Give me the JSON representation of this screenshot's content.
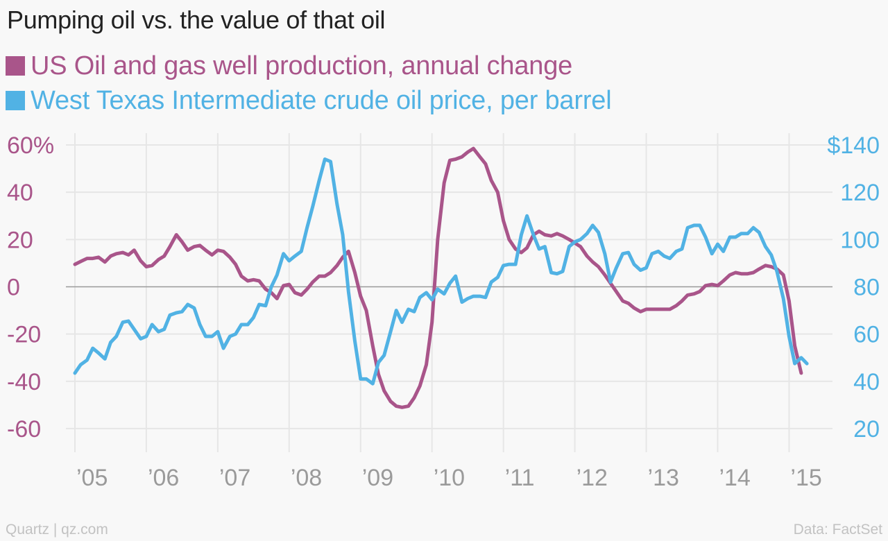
{
  "title": "Pumping oil vs. the value of that oil",
  "legend": [
    {
      "label": "US Oil and gas well production, annual change",
      "color": "#a9558a"
    },
    {
      "label": "West Texas Intermediate crude oil price, per barrel",
      "color": "#51b2e4"
    }
  ],
  "footer": {
    "source_left": "Quartz | qz.com",
    "source_right": "Data: FactSet"
  },
  "chart_data": {
    "type": "line",
    "title": "Pumping oil vs. the value of that oil",
    "grid": true,
    "x_ticks": [
      {
        "t": 2005,
        "label": "’05"
      },
      {
        "t": 2006,
        "label": "’06"
      },
      {
        "t": 2007,
        "label": "’07"
      },
      {
        "t": 2008,
        "label": "’08"
      },
      {
        "t": 2009,
        "label": "’09"
      },
      {
        "t": 2010,
        "label": "’10"
      },
      {
        "t": 2011,
        "label": "’11"
      },
      {
        "t": 2012,
        "label": "’12"
      },
      {
        "t": 2013,
        "label": "’13"
      },
      {
        "t": 2014,
        "label": "’14"
      },
      {
        "t": 2015,
        "label": "’15"
      }
    ],
    "y_left": {
      "ylim": [
        -70,
        65
      ],
      "ticks": [
        {
          "v": 60,
          "label": "60%"
        },
        {
          "v": 40,
          "label": "40"
        },
        {
          "v": 20,
          "label": "20"
        },
        {
          "v": 0,
          "label": "0"
        },
        {
          "v": -20,
          "label": "-20"
        },
        {
          "v": -40,
          "label": "-40"
        },
        {
          "v": -60,
          "label": "-60"
        }
      ],
      "color": "#a9558a"
    },
    "y_right": {
      "ylim": [
        10,
        145
      ],
      "ticks": [
        {
          "v": 140,
          "label": "$140"
        },
        {
          "v": 120,
          "label": "120"
        },
        {
          "v": 100,
          "label": "100"
        },
        {
          "v": 80,
          "label": "80"
        },
        {
          "v": 60,
          "label": "60"
        },
        {
          "v": 40,
          "label": "40"
        },
        {
          "v": 20,
          "label": "20"
        }
      ],
      "color": "#51b2e4"
    },
    "series": [
      {
        "name": "US Oil and gas well production, annual change",
        "axis": "left",
        "color": "#a9558a",
        "points": [
          [
            2005.0,
            9.5
          ],
          [
            2005.1,
            11
          ],
          [
            2005.17,
            12
          ],
          [
            2005.25,
            12
          ],
          [
            2005.33,
            12.5
          ],
          [
            2005.42,
            10.5
          ],
          [
            2005.5,
            13
          ],
          [
            2005.58,
            14
          ],
          [
            2005.67,
            14.5
          ],
          [
            2005.75,
            13.5
          ],
          [
            2005.83,
            15.5
          ],
          [
            2005.92,
            11
          ],
          [
            2006.0,
            8.5
          ],
          [
            2006.08,
            9
          ],
          [
            2006.17,
            11.5
          ],
          [
            2006.25,
            13
          ],
          [
            2006.33,
            17
          ],
          [
            2006.42,
            22
          ],
          [
            2006.5,
            19
          ],
          [
            2006.58,
            15.5
          ],
          [
            2006.67,
            17
          ],
          [
            2006.75,
            17.5
          ],
          [
            2006.83,
            15.5
          ],
          [
            2006.92,
            13.5
          ],
          [
            2007.0,
            15.5
          ],
          [
            2007.08,
            15
          ],
          [
            2007.17,
            12.5
          ],
          [
            2007.25,
            9.5
          ],
          [
            2007.33,
            4.5
          ],
          [
            2007.42,
            2.5
          ],
          [
            2007.5,
            3
          ],
          [
            2007.58,
            2.5
          ],
          [
            2007.67,
            -1
          ],
          [
            2007.75,
            -2.5
          ],
          [
            2007.83,
            -5
          ],
          [
            2007.92,
            0.5
          ],
          [
            2008.0,
            1
          ],
          [
            2008.08,
            -2.5
          ],
          [
            2008.17,
            -3.5
          ],
          [
            2008.25,
            -1
          ],
          [
            2008.33,
            2
          ],
          [
            2008.42,
            4.5
          ],
          [
            2008.5,
            4.5
          ],
          [
            2008.58,
            6
          ],
          [
            2008.67,
            9
          ],
          [
            2008.75,
            12.5
          ],
          [
            2008.83,
            15
          ],
          [
            2008.92,
            6
          ],
          [
            2009.0,
            -4
          ],
          [
            2009.08,
            -10
          ],
          [
            2009.17,
            -25
          ],
          [
            2009.25,
            -37
          ],
          [
            2009.33,
            -44
          ],
          [
            2009.42,
            -48.5
          ],
          [
            2009.5,
            -50.5
          ],
          [
            2009.58,
            -51
          ],
          [
            2009.67,
            -50.5
          ],
          [
            2009.75,
            -47
          ],
          [
            2009.83,
            -42
          ],
          [
            2009.92,
            -33
          ],
          [
            2010.0,
            -15
          ],
          [
            2010.08,
            20
          ],
          [
            2010.17,
            44
          ],
          [
            2010.25,
            53.5
          ],
          [
            2010.33,
            54
          ],
          [
            2010.42,
            55
          ],
          [
            2010.5,
            57
          ],
          [
            2010.58,
            58.5
          ],
          [
            2010.67,
            55
          ],
          [
            2010.75,
            52
          ],
          [
            2010.83,
            45
          ],
          [
            2010.92,
            40
          ],
          [
            2011.0,
            28
          ],
          [
            2011.08,
            20
          ],
          [
            2011.17,
            16
          ],
          [
            2011.25,
            14.5
          ],
          [
            2011.33,
            16.5
          ],
          [
            2011.42,
            22
          ],
          [
            2011.5,
            23.5
          ],
          [
            2011.58,
            22
          ],
          [
            2011.67,
            21.5
          ],
          [
            2011.75,
            22.5
          ],
          [
            2011.83,
            21.5
          ],
          [
            2011.92,
            20
          ],
          [
            2012.0,
            18.5
          ],
          [
            2012.08,
            17
          ],
          [
            2012.17,
            13
          ],
          [
            2012.25,
            10.5
          ],
          [
            2012.33,
            8.5
          ],
          [
            2012.42,
            5
          ],
          [
            2012.5,
            1.5
          ],
          [
            2012.58,
            -2
          ],
          [
            2012.67,
            -6
          ],
          [
            2012.75,
            -7
          ],
          [
            2012.83,
            -9
          ],
          [
            2012.92,
            -10.5
          ],
          [
            2013.0,
            -9.5
          ],
          [
            2013.08,
            -9.5
          ],
          [
            2013.17,
            -9.5
          ],
          [
            2013.25,
            -9.5
          ],
          [
            2013.33,
            -9.5
          ],
          [
            2013.42,
            -8
          ],
          [
            2013.5,
            -6
          ],
          [
            2013.58,
            -3.5
          ],
          [
            2013.67,
            -3
          ],
          [
            2013.75,
            -2
          ],
          [
            2013.83,
            0.5
          ],
          [
            2013.92,
            1
          ],
          [
            2014.0,
            0.5
          ],
          [
            2014.08,
            2.5
          ],
          [
            2014.17,
            5
          ],
          [
            2014.25,
            6
          ],
          [
            2014.33,
            5.5
          ],
          [
            2014.42,
            5.5
          ],
          [
            2014.5,
            6
          ],
          [
            2014.58,
            7.5
          ],
          [
            2014.67,
            9
          ],
          [
            2014.75,
            8.5
          ],
          [
            2014.83,
            7.5
          ],
          [
            2014.92,
            5
          ],
          [
            2015.0,
            -6
          ],
          [
            2015.08,
            -25
          ],
          [
            2015.17,
            -36.5
          ]
        ]
      },
      {
        "name": "West Texas Intermediate crude oil price, per barrel",
        "axis": "right",
        "color": "#51b2e4",
        "points": [
          [
            2005.0,
            43.5
          ],
          [
            2005.08,
            47
          ],
          [
            2005.17,
            49
          ],
          [
            2005.25,
            54
          ],
          [
            2005.33,
            52
          ],
          [
            2005.42,
            49.5
          ],
          [
            2005.5,
            56.5
          ],
          [
            2005.58,
            59
          ],
          [
            2005.67,
            65
          ],
          [
            2005.75,
            65.5
          ],
          [
            2005.83,
            62
          ],
          [
            2005.92,
            58
          ],
          [
            2006.0,
            59
          ],
          [
            2006.08,
            64
          ],
          [
            2006.17,
            61
          ],
          [
            2006.25,
            62
          ],
          [
            2006.33,
            68
          ],
          [
            2006.42,
            69
          ],
          [
            2006.5,
            69.5
          ],
          [
            2006.58,
            72.5
          ],
          [
            2006.67,
            71
          ],
          [
            2006.75,
            64
          ],
          [
            2006.83,
            59
          ],
          [
            2006.92,
            59
          ],
          [
            2007.0,
            61
          ],
          [
            2007.08,
            54
          ],
          [
            2007.17,
            59
          ],
          [
            2007.25,
            60
          ],
          [
            2007.33,
            64
          ],
          [
            2007.42,
            64
          ],
          [
            2007.5,
            67
          ],
          [
            2007.58,
            72.5
          ],
          [
            2007.67,
            72
          ],
          [
            2007.75,
            80
          ],
          [
            2007.83,
            85
          ],
          [
            2007.92,
            94
          ],
          [
            2008.0,
            91
          ],
          [
            2008.08,
            93
          ],
          [
            2008.17,
            95
          ],
          [
            2008.25,
            105
          ],
          [
            2008.33,
            114
          ],
          [
            2008.42,
            125
          ],
          [
            2008.5,
            134
          ],
          [
            2008.58,
            133
          ],
          [
            2008.67,
            115
          ],
          [
            2008.75,
            102
          ],
          [
            2008.83,
            78
          ],
          [
            2008.92,
            57
          ],
          [
            2009.0,
            41
          ],
          [
            2009.08,
            41
          ],
          [
            2009.17,
            39
          ],
          [
            2009.25,
            48
          ],
          [
            2009.33,
            51
          ],
          [
            2009.42,
            61
          ],
          [
            2009.5,
            70
          ],
          [
            2009.58,
            65
          ],
          [
            2009.67,
            70.5
          ],
          [
            2009.75,
            69.5
          ],
          [
            2009.83,
            75.5
          ],
          [
            2009.92,
            77.5
          ],
          [
            2010.0,
            74.5
          ],
          [
            2010.08,
            79
          ],
          [
            2010.17,
            77
          ],
          [
            2010.25,
            81.5
          ],
          [
            2010.33,
            84.5
          ],
          [
            2010.42,
            73.5
          ],
          [
            2010.5,
            75
          ],
          [
            2010.58,
            76
          ],
          [
            2010.67,
            76
          ],
          [
            2010.75,
            75.5
          ],
          [
            2010.83,
            82
          ],
          [
            2010.92,
            84
          ],
          [
            2011.0,
            89
          ],
          [
            2011.08,
            89.5
          ],
          [
            2011.17,
            89.5
          ],
          [
            2011.25,
            102
          ],
          [
            2011.33,
            110
          ],
          [
            2011.42,
            102
          ],
          [
            2011.5,
            96
          ],
          [
            2011.58,
            97
          ],
          [
            2011.67,
            86
          ],
          [
            2011.75,
            85.5
          ],
          [
            2011.83,
            86.5
          ],
          [
            2011.92,
            97
          ],
          [
            2012.0,
            99
          ],
          [
            2012.08,
            100
          ],
          [
            2012.17,
            102.5
          ],
          [
            2012.25,
            106
          ],
          [
            2012.33,
            103
          ],
          [
            2012.42,
            94
          ],
          [
            2012.5,
            82
          ],
          [
            2012.58,
            88
          ],
          [
            2012.67,
            94
          ],
          [
            2012.75,
            94.5
          ],
          [
            2012.83,
            89.5
          ],
          [
            2012.92,
            87
          ],
          [
            2013.0,
            88
          ],
          [
            2013.08,
            94
          ],
          [
            2013.17,
            95
          ],
          [
            2013.25,
            93
          ],
          [
            2013.33,
            92
          ],
          [
            2013.42,
            95
          ],
          [
            2013.5,
            96
          ],
          [
            2013.58,
            105
          ],
          [
            2013.67,
            106
          ],
          [
            2013.75,
            106
          ],
          [
            2013.83,
            101
          ],
          [
            2013.92,
            94
          ],
          [
            2014.0,
            98
          ],
          [
            2014.08,
            95
          ],
          [
            2014.17,
            101
          ],
          [
            2014.25,
            101
          ],
          [
            2014.33,
            102.5
          ],
          [
            2014.42,
            102.5
          ],
          [
            2014.5,
            105
          ],
          [
            2014.58,
            103
          ],
          [
            2014.67,
            97
          ],
          [
            2014.75,
            93.5
          ],
          [
            2014.83,
            86.5
          ],
          [
            2014.92,
            75
          ],
          [
            2015.0,
            59
          ],
          [
            2015.08,
            47.5
          ],
          [
            2015.17,
            50
          ],
          [
            2015.25,
            47.5
          ]
        ]
      }
    ]
  }
}
